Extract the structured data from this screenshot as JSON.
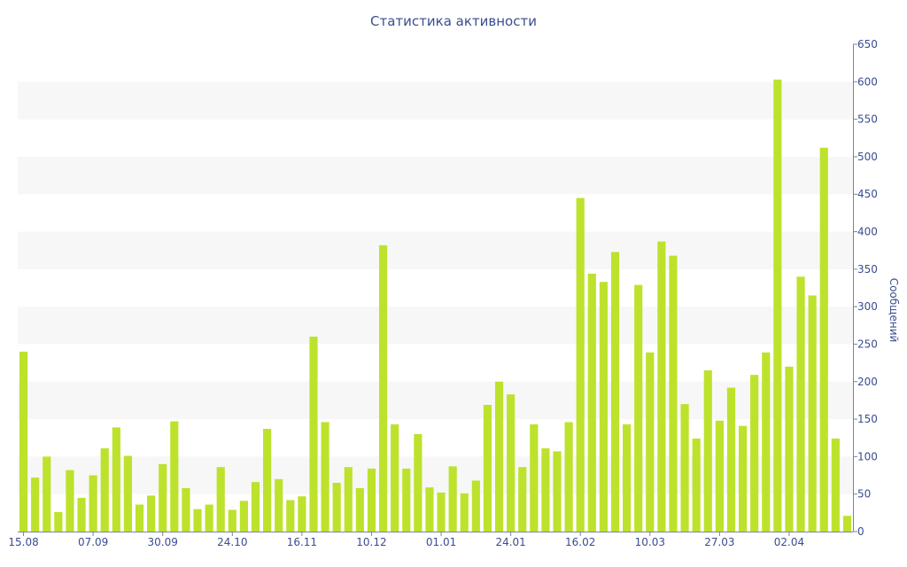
{
  "colors": {
    "bar": "#bde22c",
    "text": "#3a4d8f",
    "band": "#f7f7f7",
    "axis": "#7a8598"
  },
  "chart_data": {
    "type": "bar",
    "title": "Статистика активности",
    "xlabel": "",
    "ylabel": "Сообщений",
    "ylim": [
      0,
      650
    ],
    "y_axis_side": "right",
    "grid": "alternating horizontal bands",
    "yticks": [
      0,
      50,
      100,
      150,
      200,
      250,
      300,
      350,
      400,
      450,
      500,
      550,
      600,
      650
    ],
    "xtick_labels": [
      {
        "index": 0,
        "label": "15.08"
      },
      {
        "index": 6,
        "label": "07.09"
      },
      {
        "index": 12,
        "label": "30.09"
      },
      {
        "index": 18,
        "label": "24.10"
      },
      {
        "index": 24,
        "label": "16.11"
      },
      {
        "index": 30,
        "label": "10.12"
      },
      {
        "index": 36,
        "label": "01.01"
      },
      {
        "index": 42,
        "label": "24.01"
      },
      {
        "index": 48,
        "label": "16.02"
      },
      {
        "index": 54,
        "label": "10.03"
      },
      {
        "index": 60,
        "label": "27.03"
      },
      {
        "index": 66,
        "label": "02.04"
      }
    ],
    "values": [
      240,
      72,
      100,
      26,
      82,
      45,
      75,
      111,
      139,
      101,
      36,
      48,
      90,
      147,
      58,
      30,
      36,
      86,
      29,
      41,
      66,
      137,
      70,
      42,
      47,
      260,
      146,
      65,
      86,
      58,
      84,
      382,
      143,
      84,
      130,
      59,
      52,
      87,
      51,
      68,
      169,
      200,
      183,
      86,
      143,
      111,
      107,
      146,
      445,
      344,
      333,
      373,
      143,
      329,
      239,
      387,
      368,
      170,
      124,
      215,
      148,
      192,
      141,
      209,
      239,
      603,
      220,
      340,
      315,
      512,
      124,
      21
    ]
  }
}
